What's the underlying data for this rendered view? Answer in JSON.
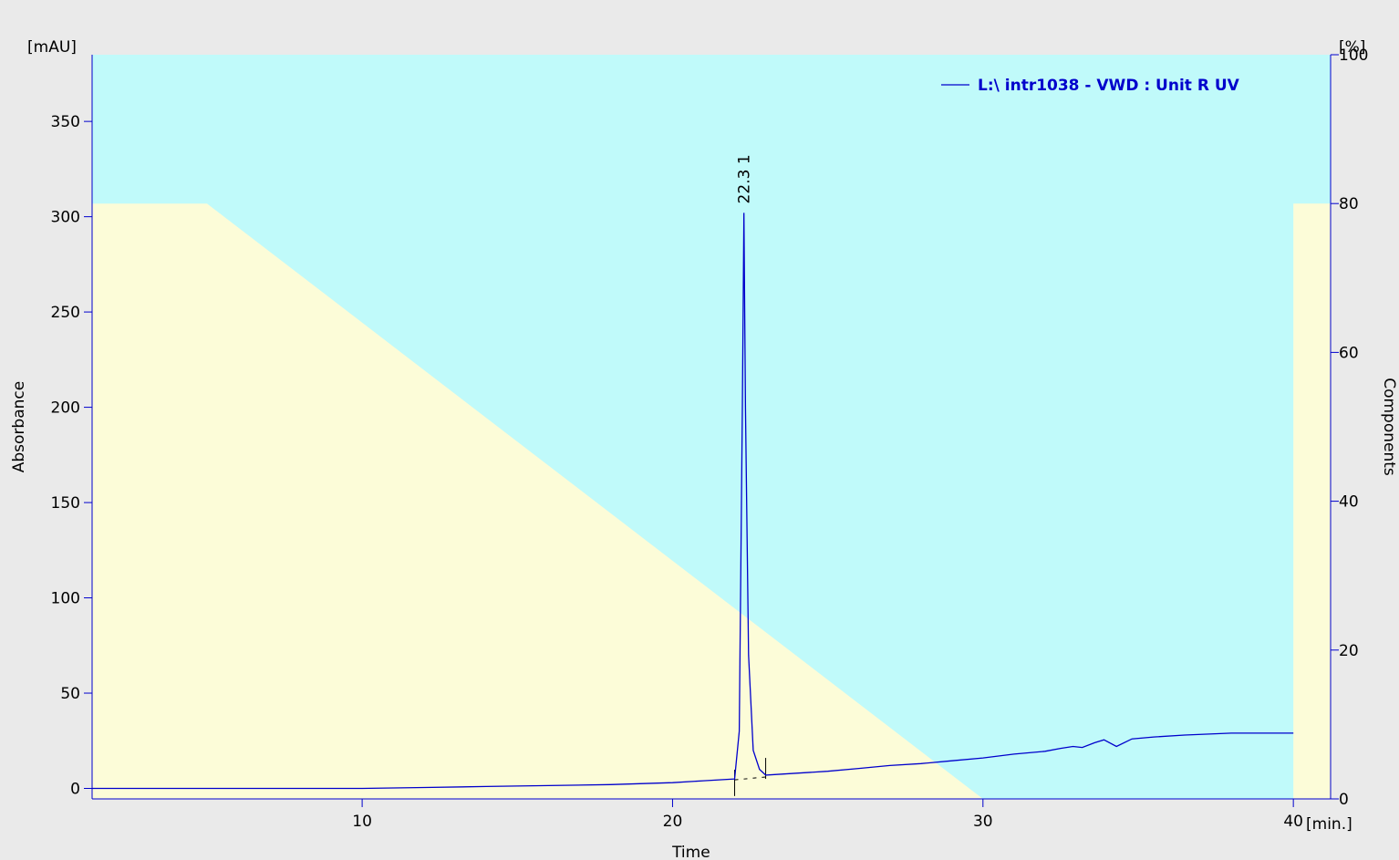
{
  "chart_data": {
    "type": "line",
    "xlabel": "Time",
    "x_unit": "[min.]",
    "ylabel_left": "Absorbance",
    "y_unit_left": "[mAU]",
    "ylabel_right": "Components",
    "y_unit_right": "[%]",
    "xlim": [
      0,
      41.2
    ],
    "ylim_left": [
      -5,
      385
    ],
    "ylim_right": [
      0,
      100
    ],
    "x_ticks": [
      10,
      20,
      30,
      40
    ],
    "y_ticks_left": [
      0,
      50,
      100,
      150,
      200,
      250,
      300,
      350
    ],
    "y_ticks_right": [
      0,
      20,
      40,
      60,
      80,
      100
    ],
    "grid": false,
    "legend_position": "top-right",
    "colors": {
      "plot_background": "#c0fafa",
      "gradient_fill": "#fcfcd8",
      "signal_line": "#0000cc",
      "page_background": "#eaeaea"
    },
    "series": [
      {
        "name": "L:\\ intr1038 - VWD : Unit R UV",
        "axis": "left",
        "x": [
          0,
          3,
          5,
          8,
          10,
          12,
          14,
          16,
          18,
          20,
          21,
          22,
          22.15,
          22.25,
          22.3,
          22.35,
          22.45,
          22.6,
          22.8,
          23,
          24,
          25,
          26,
          27,
          28,
          29,
          30,
          31,
          32,
          32.5,
          32.9,
          33.2,
          33.6,
          33.9,
          34.3,
          34.8,
          35.5,
          36.5,
          38,
          40
        ],
        "y": [
          0,
          0,
          0,
          0,
          0,
          0.5,
          1,
          1.5,
          2,
          3,
          4,
          5,
          30,
          200,
          302,
          200,
          70,
          20,
          10,
          7,
          8,
          9,
          10.5,
          12,
          13,
          14.5,
          16,
          18,
          19.5,
          21,
          22,
          21.5,
          24,
          25.5,
          22,
          26,
          27,
          28,
          29,
          29
        ]
      }
    ],
    "gradient_profile": {
      "name": "Components",
      "axis": "right",
      "x": [
        0,
        5,
        30,
        30,
        40,
        40
      ],
      "y": [
        80,
        80,
        0,
        0,
        0,
        80
      ]
    },
    "peaks": [
      {
        "id": "1",
        "retention_time": "22.3",
        "x": 22.3,
        "y": 302
      }
    ]
  }
}
